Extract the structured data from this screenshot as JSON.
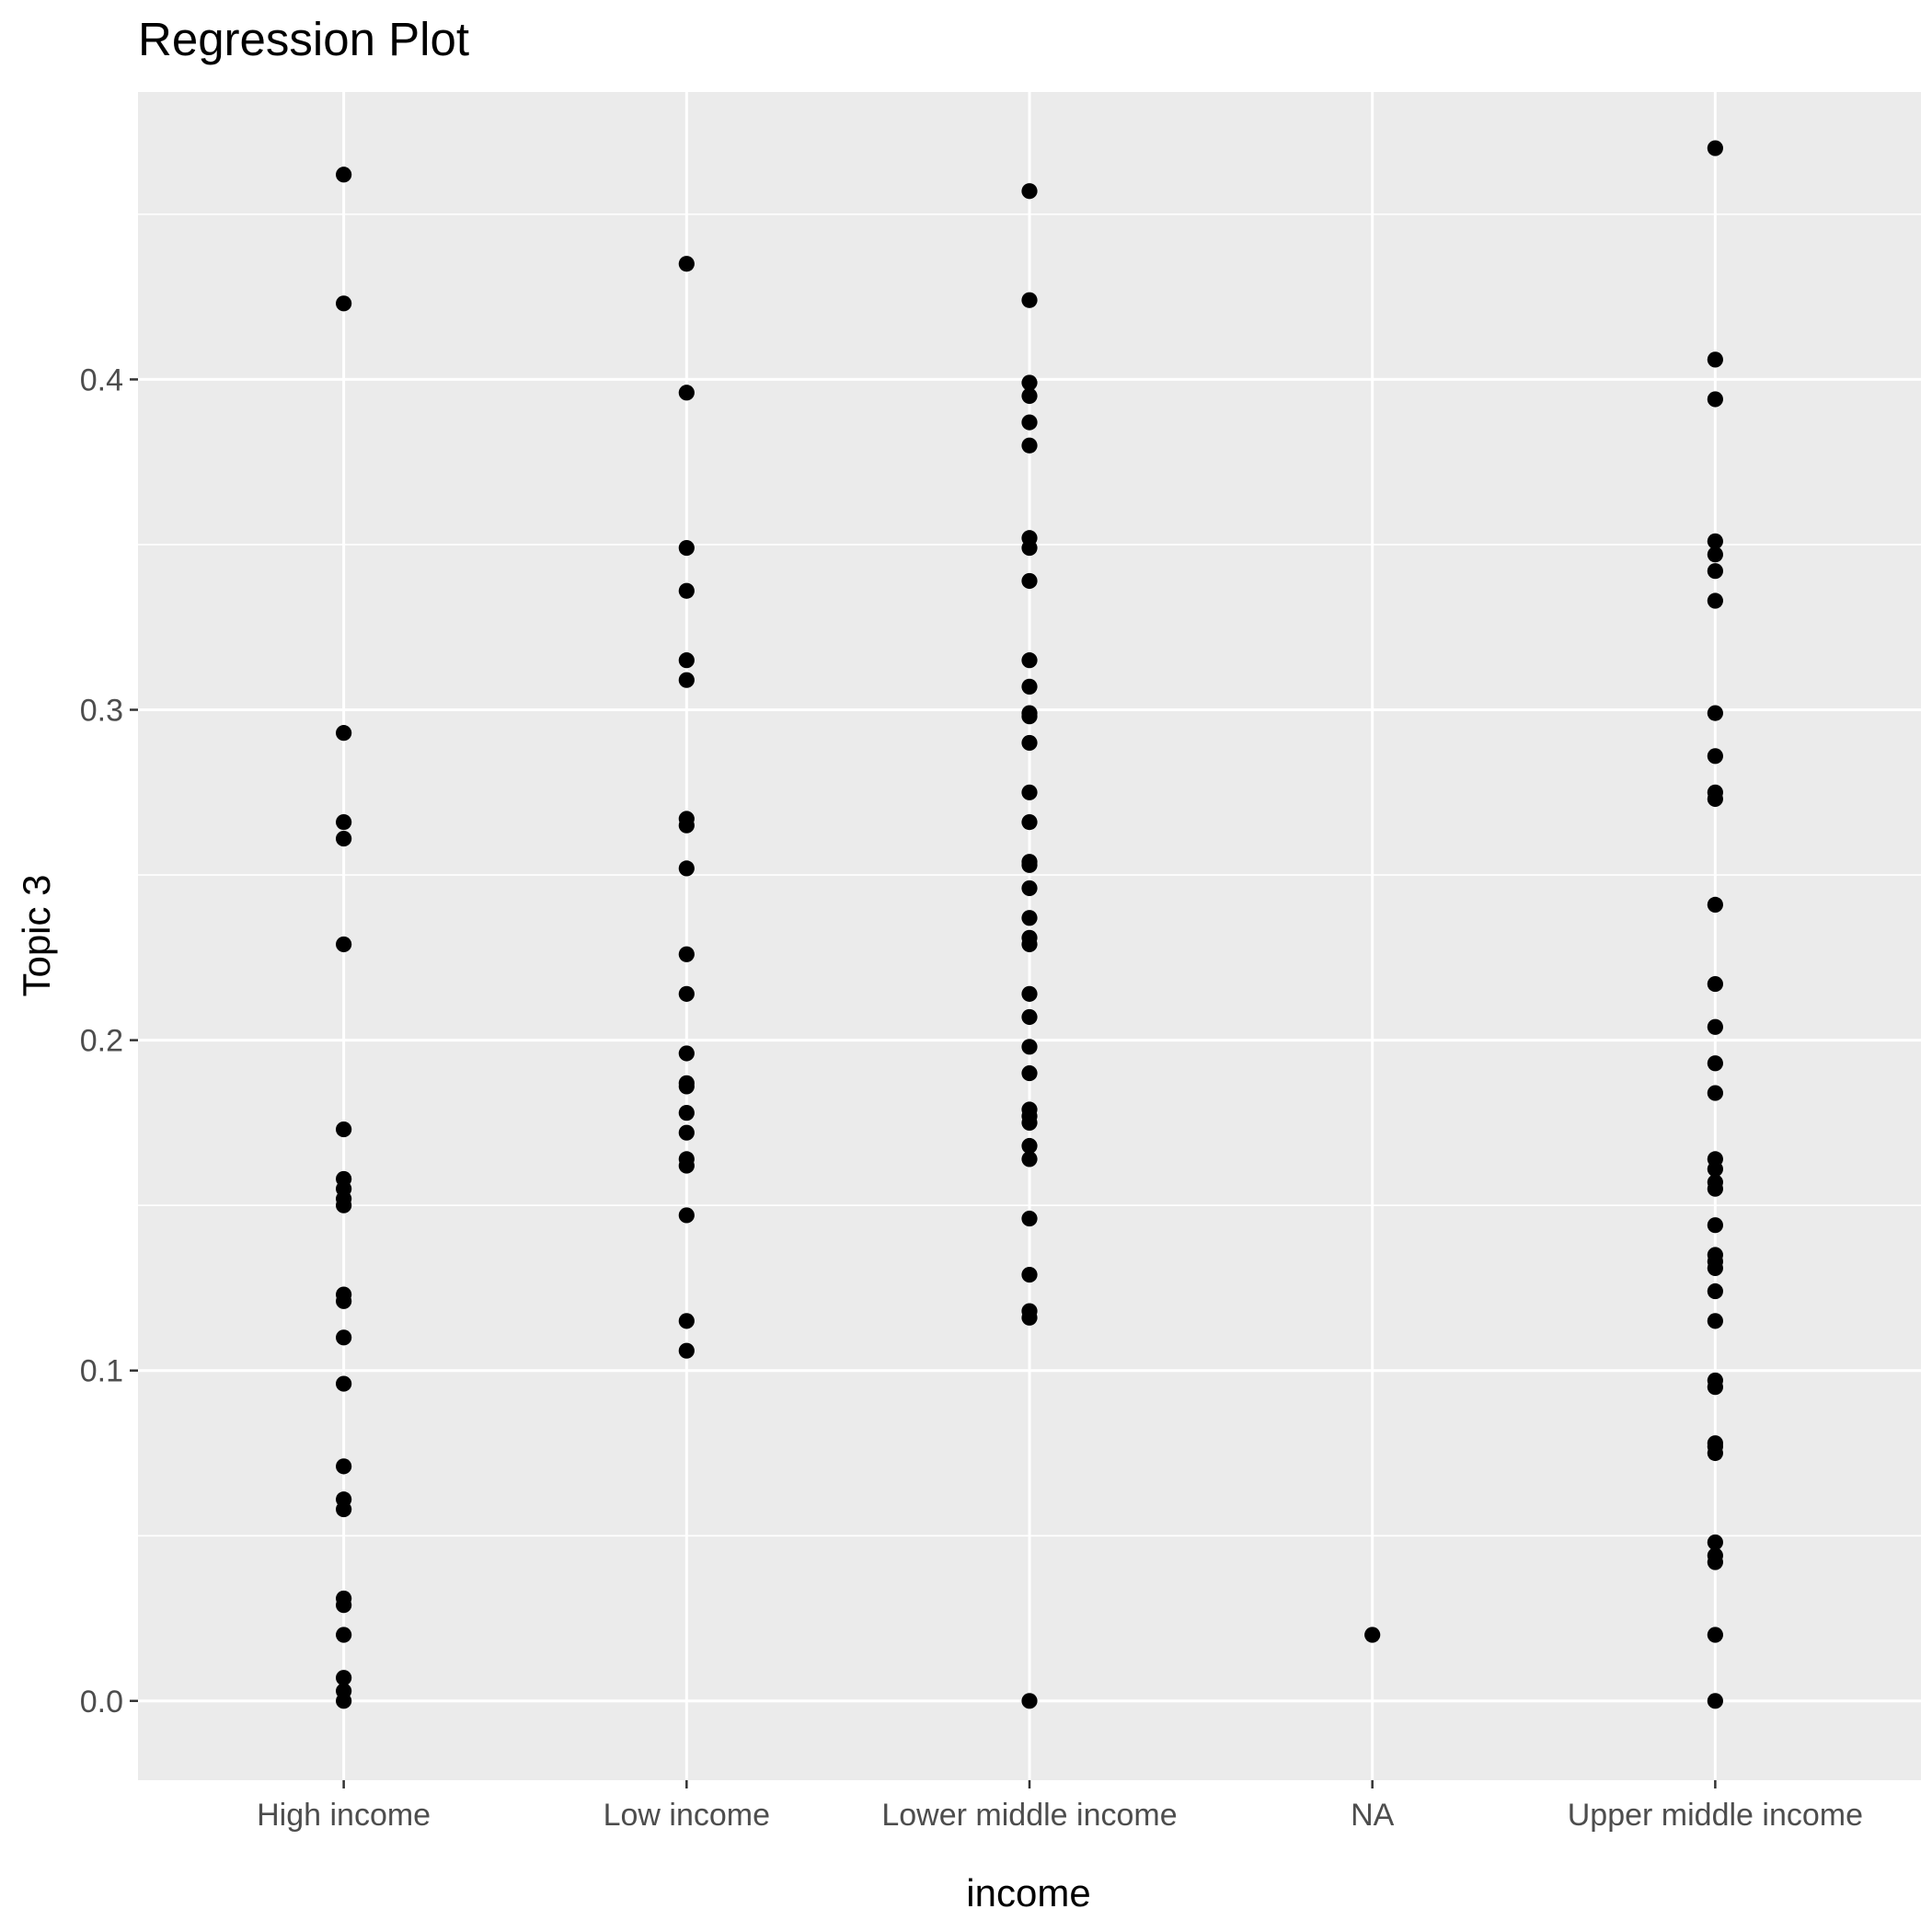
{
  "chart_data": {
    "type": "scatter",
    "title": "Regression Plot",
    "xlabel": "income",
    "ylabel": "Topic 3",
    "categories": [
      "High income",
      "Low income",
      "Lower middle income",
      "NA",
      "Upper middle income"
    ],
    "ylim": [
      -0.024,
      0.487
    ],
    "yticks": [
      0.0,
      0.1,
      0.2,
      0.3,
      0.4
    ],
    "ytick_labels": [
      "0.0",
      "0.1",
      "0.2",
      "0.3",
      "0.4"
    ],
    "grid": true,
    "legend": "none",
    "colors": {
      "panel": "#ebebeb",
      "point": "#000000",
      "grid": "#ffffff",
      "tick_text": "#4d4d4d"
    },
    "series": [
      {
        "category": "High income",
        "values": [
          0.462,
          0.423,
          0.293,
          0.266,
          0.261,
          0.229,
          0.173,
          0.158,
          0.155,
          0.152,
          0.15,
          0.123,
          0.121,
          0.11,
          0.096,
          0.071,
          0.061,
          0.058,
          0.031,
          0.029,
          0.02,
          0.007,
          0.003,
          0.0
        ]
      },
      {
        "category": "Low income",
        "values": [
          0.435,
          0.396,
          0.349,
          0.336,
          0.315,
          0.309,
          0.267,
          0.265,
          0.252,
          0.226,
          0.214,
          0.196,
          0.187,
          0.186,
          0.178,
          0.172,
          0.164,
          0.162,
          0.147,
          0.115,
          0.106
        ]
      },
      {
        "category": "Lower middle income",
        "values": [
          0.457,
          0.424,
          0.399,
          0.395,
          0.387,
          0.38,
          0.352,
          0.349,
          0.339,
          0.315,
          0.307,
          0.299,
          0.298,
          0.29,
          0.275,
          0.266,
          0.254,
          0.253,
          0.246,
          0.237,
          0.231,
          0.229,
          0.214,
          0.207,
          0.198,
          0.19,
          0.179,
          0.177,
          0.175,
          0.168,
          0.164,
          0.146,
          0.129,
          0.118,
          0.116,
          0.0
        ]
      },
      {
        "category": "NA",
        "values": [
          0.02
        ]
      },
      {
        "category": "Upper middle income",
        "values": [
          0.47,
          0.406,
          0.394,
          0.351,
          0.347,
          0.342,
          0.333,
          0.299,
          0.286,
          0.275,
          0.273,
          0.241,
          0.217,
          0.204,
          0.193,
          0.184,
          0.164,
          0.161,
          0.157,
          0.155,
          0.144,
          0.135,
          0.133,
          0.131,
          0.124,
          0.115,
          0.097,
          0.095,
          0.078,
          0.077,
          0.075,
          0.048,
          0.044,
          0.042,
          0.02,
          0.0
        ]
      }
    ]
  }
}
